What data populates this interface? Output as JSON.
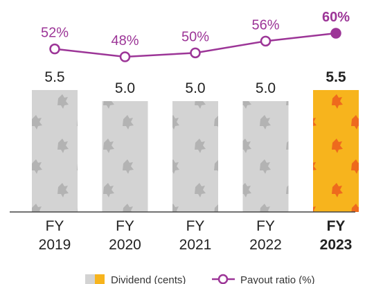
{
  "colors": {
    "bar": "#d3d3d3",
    "bar_pattern": "#b3b3b3",
    "highlight_bar": "#f7b41d",
    "highlight_pattern": "#ee6a1d",
    "line": "#9c3597",
    "text": "#222222",
    "axis": "#444444"
  },
  "chart_data": {
    "type": "bar",
    "categories": [
      [
        "FY",
        "2019"
      ],
      [
        "FY",
        "2020"
      ],
      [
        "FY",
        "2021"
      ],
      [
        "FY",
        "2022"
      ],
      [
        "FY",
        "2023"
      ]
    ],
    "highlight_index": 4,
    "series": [
      {
        "name": "Dividend (cents)",
        "type": "bar",
        "values": [
          5.5,
          5.0,
          5.0,
          5.0,
          5.5
        ],
        "labels": [
          "5.5",
          "5.0",
          "5.0",
          "5.0",
          "5.5"
        ]
      },
      {
        "name": "Payout ratio (%)",
        "type": "line",
        "values": [
          52,
          48,
          50,
          56,
          60
        ],
        "labels": [
          "52%",
          "48%",
          "50%",
          "56%",
          "60%"
        ]
      }
    ],
    "legend_position": "bottom",
    "grid": false
  }
}
